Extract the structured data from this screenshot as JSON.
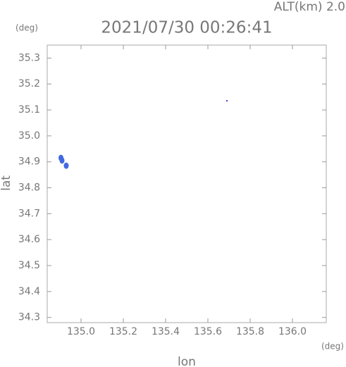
{
  "chart_data": {
    "type": "scatter",
    "title": "2021/07/30 00:26:41",
    "subtitle": "ALT(km) 2.0",
    "x_label": "lon",
    "y_label": "lat",
    "x_unit": "(deg)",
    "y_unit": "(deg)",
    "x": [
      134.905,
      134.91,
      134.93,
      135.69
    ],
    "y": [
      34.915,
      34.905,
      34.885,
      35.135
    ],
    "colors": [
      "#4169e1",
      "#4169e1",
      "#4169e1",
      "#0000cd"
    ],
    "xlim": [
      134.84,
      136.16
    ],
    "ylim": [
      34.28,
      35.35
    ],
    "xticks": [
      {
        "value": 135.0,
        "label": "135.0"
      },
      135.2,
      135.4,
      135.6,
      135.8,
      {
        "value": 136.0,
        "label": "136.0"
      }
    ],
    "yticks": [
      34.3,
      34.4,
      34.5,
      34.6,
      34.7,
      34.8,
      34.9,
      {
        "value": 35.0,
        "label": "35.0"
      },
      35.1,
      35.2,
      35.3
    ]
  }
}
